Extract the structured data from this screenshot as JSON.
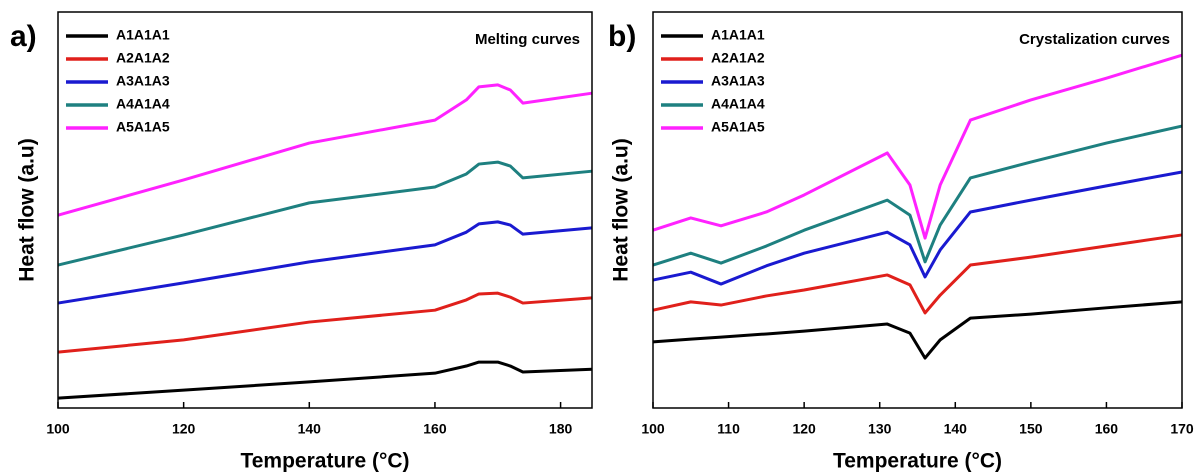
{
  "chart_data": [
    {
      "type": "line",
      "panel_label": "a)",
      "title": "Melting curves",
      "xlabel": "Temperature (°C)",
      "ylabel": "Heat flow (a.u)",
      "x": [
        100,
        120,
        140,
        160,
        165,
        167,
        170,
        172,
        174,
        185
      ],
      "xlim": [
        100,
        185
      ],
      "xticks": [
        100,
        120,
        140,
        160,
        180
      ],
      "ylim": [
        0,
        100
      ],
      "series": [
        {
          "name": "A1A1A1",
          "color": "#000000",
          "values": [
            2.5,
            4.5,
            6.6,
            8.8,
            10.6,
            11.6,
            11.6,
            10.6,
            9.1,
            9.8
          ]
        },
        {
          "name": "A2A1A2",
          "color": "#e0201b",
          "values": [
            14.1,
            17.2,
            21.7,
            24.7,
            27.3,
            28.8,
            29.0,
            28.0,
            26.5,
            27.8
          ]
        },
        {
          "name": "A3A1A3",
          "color": "#1a1ad0",
          "values": [
            26.5,
            31.6,
            36.9,
            41.2,
            44.4,
            46.5,
            47.0,
            46.2,
            43.9,
            45.5
          ]
        },
        {
          "name": "A4A1A4",
          "color": "#1e8080",
          "values": [
            36.1,
            43.7,
            51.8,
            55.8,
            59.1,
            61.6,
            62.1,
            61.1,
            58.1,
            59.8
          ]
        },
        {
          "name": "A5A1A5",
          "color": "#ff22ff",
          "values": [
            48.7,
            57.6,
            66.9,
            72.7,
            77.8,
            81.1,
            81.6,
            80.3,
            77.0,
            79.5
          ]
        }
      ]
    },
    {
      "type": "line",
      "panel_label": "b)",
      "title": "Crystalization curves",
      "xlabel": "Temperature (°C)",
      "ylabel": "Heat flow (a.u)",
      "x": [
        100,
        105,
        109,
        115,
        120,
        131,
        134,
        136,
        138,
        142,
        150,
        160,
        170
      ],
      "xlim": [
        100,
        170
      ],
      "xticks": [
        100,
        110,
        120,
        130,
        140,
        150,
        160,
        170
      ],
      "ylim": [
        0,
        100
      ],
      "series": [
        {
          "name": "A1A1A1",
          "color": "#000000",
          "values": [
            16.7,
            17.4,
            17.9,
            18.7,
            19.4,
            21.2,
            18.9,
            12.6,
            17.2,
            22.7,
            23.7,
            25.3,
            26.8
          ]
        },
        {
          "name": "A2A1A2",
          "color": "#e0201b",
          "values": [
            24.7,
            26.8,
            26.0,
            28.3,
            29.8,
            33.6,
            31.1,
            24.0,
            28.5,
            36.1,
            38.1,
            40.9,
            43.7
          ]
        },
        {
          "name": "A3A1A3",
          "color": "#1a1ad0",
          "values": [
            32.3,
            34.3,
            31.3,
            35.9,
            39.1,
            44.4,
            41.2,
            33.1,
            39.9,
            49.5,
            52.5,
            56.1,
            59.6
          ]
        },
        {
          "name": "A4A1A4",
          "color": "#1e8080",
          "values": [
            36.1,
            39.1,
            36.6,
            40.9,
            44.9,
            52.5,
            48.7,
            36.9,
            46.2,
            58.1,
            62.1,
            66.9,
            71.2
          ]
        },
        {
          "name": "A5A1A5",
          "color": "#ff22ff",
          "values": [
            44.9,
            48.0,
            46.0,
            49.5,
            53.8,
            64.4,
            56.3,
            42.9,
            56.3,
            72.7,
            77.8,
            83.3,
            89.1
          ]
        }
      ]
    }
  ]
}
